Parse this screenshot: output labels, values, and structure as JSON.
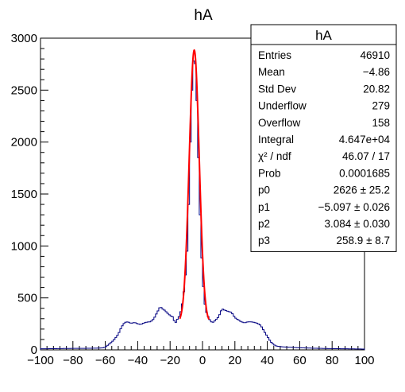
{
  "chart_data": {
    "type": "histogram",
    "title": "hA",
    "xlabel": "",
    "ylabel": "",
    "xlim": [
      -100,
      100
    ],
    "ylim": [
      0,
      3000
    ],
    "x_ticks": [
      "−100",
      "−80",
      "−60",
      "−40",
      "−20",
      "0",
      "20",
      "40",
      "60",
      "80",
      "100"
    ],
    "y_ticks": [
      "0",
      "500",
      "1000",
      "1500",
      "2000",
      "2500",
      "3000"
    ],
    "grid": false,
    "legend": "none",
    "bin_width": 1,
    "histogram_color": "#000080",
    "fit_color": "#ff0000",
    "histogram_points": [
      [
        -100,
        10
      ],
      [
        -90,
        12
      ],
      [
        -80,
        14
      ],
      [
        -70,
        15
      ],
      [
        -62,
        18
      ],
      [
        -60,
        25
      ],
      [
        -58,
        50
      ],
      [
        -55,
        90
      ],
      [
        -52,
        150
      ],
      [
        -50,
        220
      ],
      [
        -48,
        265
      ],
      [
        -46,
        270
      ],
      [
        -44,
        255
      ],
      [
        -42,
        265
      ],
      [
        -40,
        250
      ],
      [
        -38,
        245
      ],
      [
        -36,
        260
      ],
      [
        -34,
        268
      ],
      [
        -32,
        270
      ],
      [
        -30,
        300
      ],
      [
        -28,
        360
      ],
      [
        -26,
        420
      ],
      [
        -25,
        395
      ],
      [
        -24,
        390
      ],
      [
        -22,
        360
      ],
      [
        -20,
        330
      ],
      [
        -18,
        315
      ],
      [
        -17,
        250
      ],
      [
        -16,
        280
      ],
      [
        -15,
        310
      ],
      [
        -14,
        330
      ],
      [
        -12,
        480
      ],
      [
        -10,
        800
      ],
      [
        -9,
        1100
      ],
      [
        -8,
        1700
      ],
      [
        -7,
        2300
      ],
      [
        -6,
        2700
      ],
      [
        -5,
        2860
      ],
      [
        -4,
        2650
      ],
      [
        -3,
        2150
      ],
      [
        -2,
        1550
      ],
      [
        -1,
        1050
      ],
      [
        0,
        720
      ],
      [
        1,
        500
      ],
      [
        2,
        380
      ],
      [
        4,
        300
      ],
      [
        6,
        260
      ],
      [
        8,
        285
      ],
      [
        10,
        320
      ],
      [
        12,
        395
      ],
      [
        14,
        380
      ],
      [
        16,
        370
      ],
      [
        18,
        360
      ],
      [
        20,
        310
      ],
      [
        22,
        290
      ],
      [
        24,
        270
      ],
      [
        26,
        260
      ],
      [
        28,
        270
      ],
      [
        30,
        270
      ],
      [
        32,
        265
      ],
      [
        34,
        255
      ],
      [
        36,
        235
      ],
      [
        38,
        180
      ],
      [
        40,
        130
      ],
      [
        42,
        80
      ],
      [
        44,
        50
      ],
      [
        46,
        35
      ],
      [
        50,
        28
      ],
      [
        55,
        24
      ],
      [
        60,
        20
      ],
      [
        70,
        15
      ],
      [
        80,
        12
      ],
      [
        90,
        10
      ],
      [
        99,
        8
      ]
    ],
    "fit": {
      "function": "gaus + pol0",
      "p0": 2626,
      "p1": -5.097,
      "p2": 3.084,
      "p3": 258.9,
      "x_range": [
        -14,
        4
      ]
    },
    "stats_box": {
      "title": "hA",
      "rows": [
        {
          "label": "Entries",
          "value": "46910"
        },
        {
          "label": "Mean",
          "value": "−4.86"
        },
        {
          "label": "Std Dev",
          "value": "20.82"
        },
        {
          "label": "Underflow",
          "value": "279"
        },
        {
          "label": "Overflow",
          "value": "158"
        },
        {
          "label": "Integral",
          "value": "4.647e+04"
        },
        {
          "label": "χ² / ndf",
          "value": "46.07 / 17"
        },
        {
          "label": "Prob",
          "value": "0.0001685"
        },
        {
          "label": "p0",
          "value": "2626 ± 25.2"
        },
        {
          "label": "p1",
          "value": "−5.097 ± 0.026"
        },
        {
          "label": "p2",
          "value": "3.084 ± 0.030"
        },
        {
          "label": "p3",
          "value": "258.9 ± 8.7"
        }
      ]
    }
  }
}
